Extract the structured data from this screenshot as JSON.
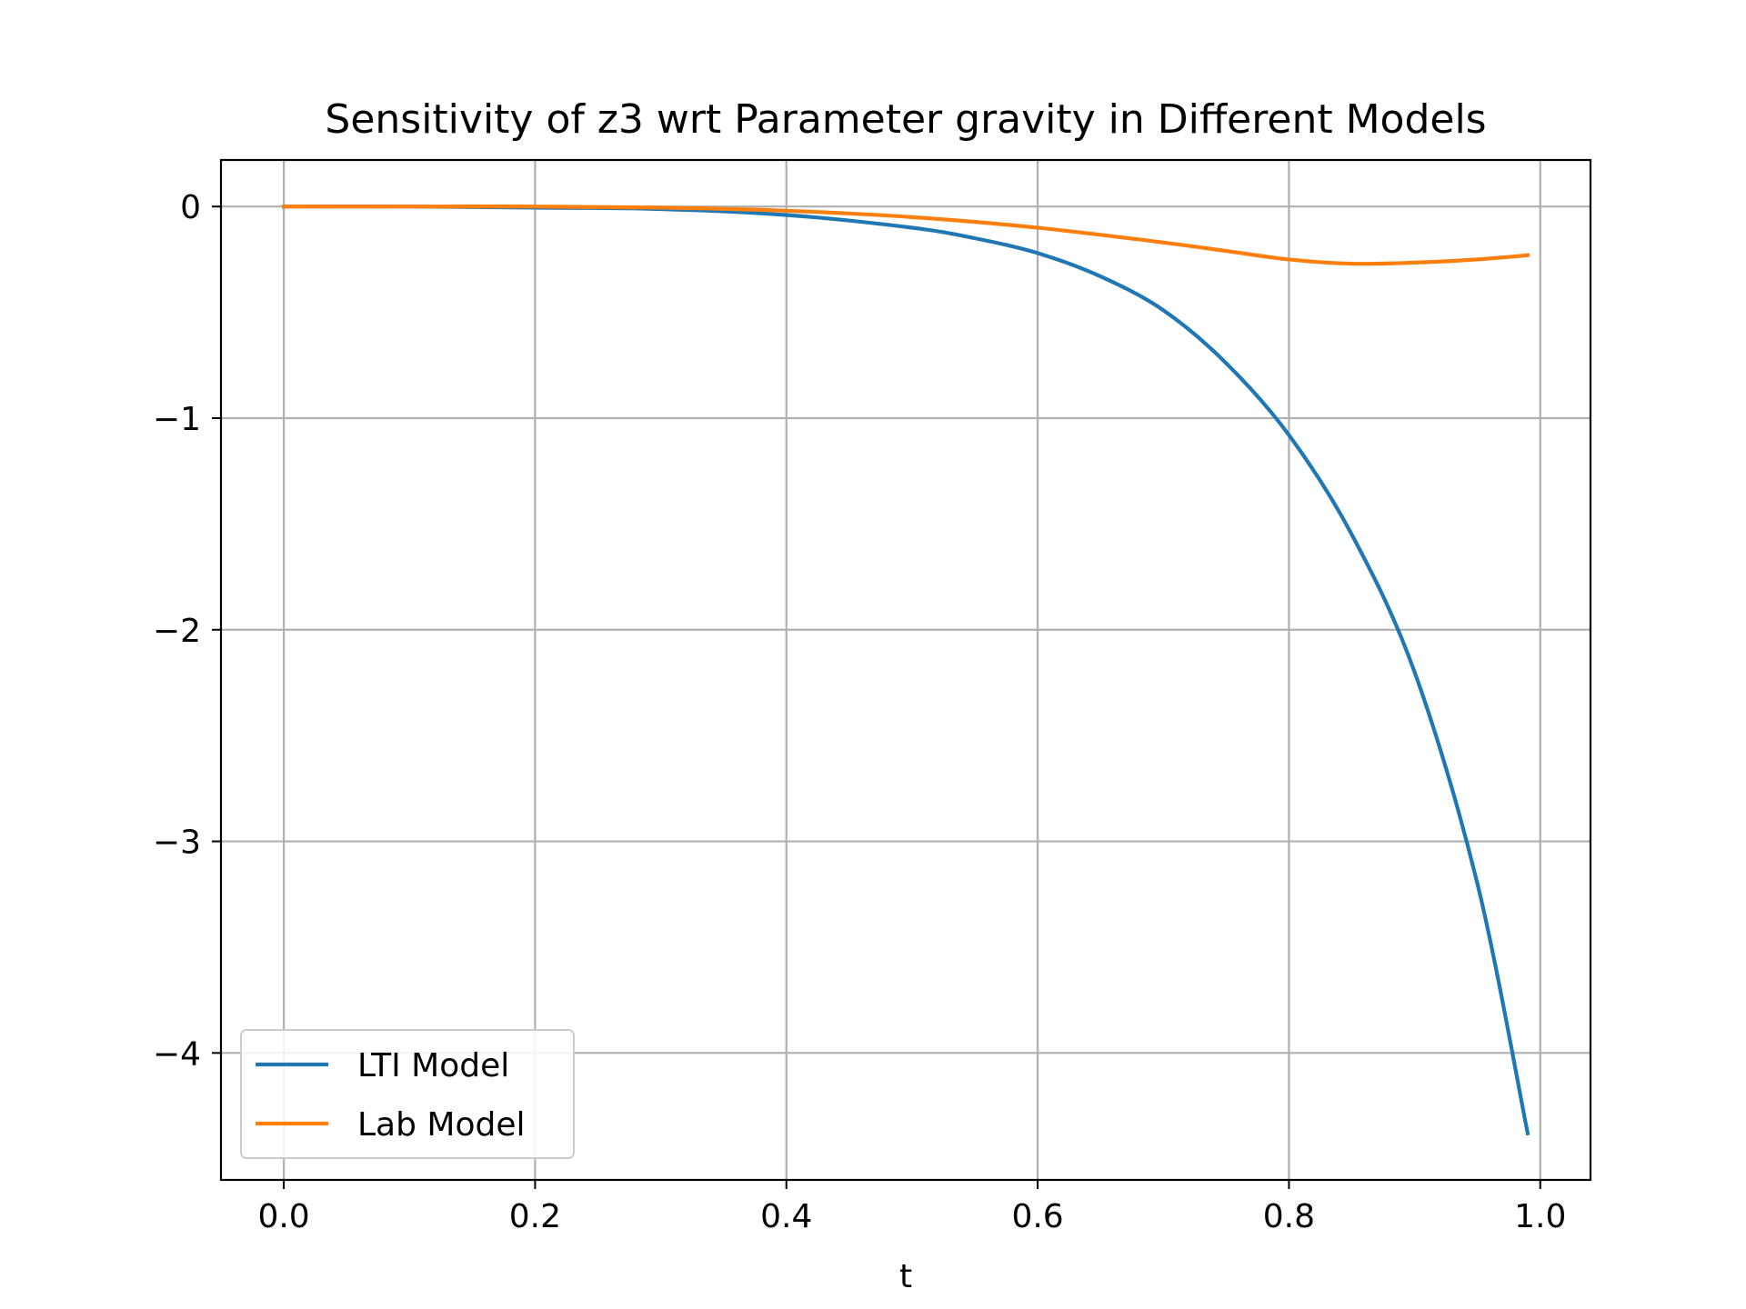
{
  "chart_data": {
    "type": "line",
    "title": "Sensitivity of z3 wrt Parameter gravity in Different Models",
    "xlabel": "t",
    "ylabel": "",
    "xlim": [
      -0.05,
      1.04
    ],
    "ylim": [
      -4.6,
      0.22
    ],
    "grid": true,
    "legend_position": "lower-left",
    "x_ticks": [
      0.0,
      0.2,
      0.4,
      0.6,
      0.8,
      1.0
    ],
    "x_tick_labels": [
      "0.0",
      "0.2",
      "0.4",
      "0.6",
      "0.8",
      "1.0"
    ],
    "y_ticks": [
      0,
      -1,
      -2,
      -3,
      -4
    ],
    "y_tick_labels": [
      "0",
      "−1",
      "−2",
      "−3",
      "−4"
    ],
    "series": [
      {
        "name": "LTI Model",
        "color": "#1f77b4",
        "x": [
          0.0,
          0.1,
          0.2,
          0.3,
          0.4,
          0.5,
          0.55,
          0.6,
          0.65,
          0.7,
          0.75,
          0.8,
          0.85,
          0.9,
          0.95,
          0.99
        ],
        "y": [
          0.0,
          0.0,
          -0.005,
          -0.012,
          -0.04,
          -0.1,
          -0.15,
          -0.22,
          -0.33,
          -0.49,
          -0.74,
          -1.08,
          -1.55,
          -2.2,
          -3.2,
          -4.38
        ]
      },
      {
        "name": "Lab Model",
        "color": "#ff7f0e",
        "x": [
          0.0,
          0.1,
          0.2,
          0.3,
          0.4,
          0.5,
          0.6,
          0.7,
          0.75,
          0.8,
          0.85,
          0.9,
          0.95,
          0.99
        ],
        "y": [
          0.0,
          0.0,
          0.0,
          -0.005,
          -0.02,
          -0.05,
          -0.1,
          -0.17,
          -0.21,
          -0.25,
          -0.27,
          -0.265,
          -0.25,
          -0.23
        ]
      }
    ]
  }
}
